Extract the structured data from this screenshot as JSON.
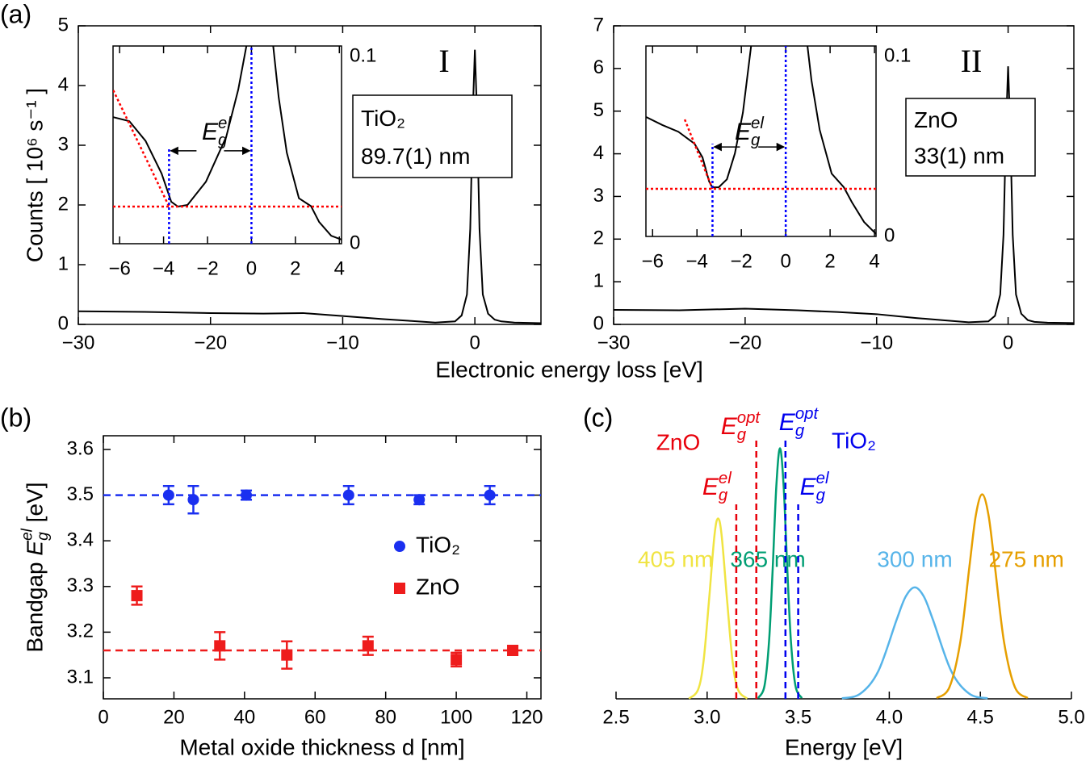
{
  "chart_data": [
    {
      "type": "line",
      "panel_label": "(a)",
      "x_label": "Electronic energy loss [eV]",
      "y_label": "Counts [ 10⁶ s⁻¹ ]",
      "annotation": "I",
      "sample": {
        "material": "TiO₂",
        "thickness": "89.7(1) nm"
      },
      "color": "#000000",
      "x": [
        -30,
        -25,
        -20,
        -16,
        -13,
        -10,
        -7,
        -5,
        -3,
        -1.5,
        -1,
        -0.6,
        -0.35,
        -0.15,
        0,
        0.15,
        0.35,
        0.6,
        1,
        1.5,
        2,
        3,
        5
      ],
      "values": [
        0.22,
        0.21,
        0.19,
        0.18,
        0.19,
        0.14,
        0.09,
        0.06,
        0.03,
        0.05,
        0.15,
        0.5,
        1.6,
        3.6,
        4.6,
        3.6,
        1.6,
        0.5,
        0.18,
        0.08,
        0.05,
        0.03,
        0.02
      ],
      "xlim": [
        -30,
        5
      ],
      "ylim": [
        0,
        5
      ],
      "xticks": [
        {
          "value": -30,
          "label": "−30"
        },
        {
          "value": -20,
          "label": "−20"
        },
        {
          "value": -10,
          "label": "−10"
        },
        0
      ],
      "yticks": [
        0,
        1,
        2,
        3,
        4,
        5
      ],
      "inset": {
        "x": [
          -6.29,
          -5.56,
          -4.82,
          -4.09,
          -3.65,
          -3.35,
          -2.91,
          -2.07,
          -1.15,
          -0.6,
          -0.23,
          -0.05,
          0.8,
          0.99,
          1.24,
          1.61,
          2.16,
          2.71,
          3.08,
          3.63,
          4.11
        ],
        "values": [
          0.064,
          0.062,
          0.052,
          0.0355,
          0.0212,
          0.0188,
          0.0196,
          0.0314,
          0.054,
          0.078,
          0.1,
          0.15,
          0.15,
          0.1,
          0.074,
          0.046,
          0.023,
          0.019,
          0.011,
          0.004,
          0.002
        ],
        "xlim": [
          -6.3,
          4.1
        ],
        "ylim": [
          0,
          0.1
        ],
        "xticks": [
          {
            "value": -6,
            "label": "−6"
          },
          {
            "value": -4,
            "label": "−4"
          },
          {
            "value": -2,
            "label": "−2"
          },
          0,
          2,
          4
        ],
        "yticks": [
          0,
          0.1
        ],
        "baseline": 0.0188,
        "baseline_color": "#ff0000",
        "tangent": {
          "x": [
            -6.29,
            -3.75
          ],
          "values": [
            0.0776,
            0.0188
          ]
        },
        "gap_edges": [
          -3.75,
          0
        ],
        "gap_color": "#0000ff",
        "gap_label": {
          "base": "E",
          "sub": "g",
          "sup": "el"
        }
      }
    },
    {
      "type": "line",
      "annotation": "II",
      "sample": {
        "material": "ZnO",
        "thickness": "33(1) nm"
      },
      "color": "#000000",
      "x": [
        -30,
        -25,
        -20,
        -16,
        -13,
        -10,
        -7,
        -5,
        -3,
        -1.5,
        -1,
        -0.6,
        -0.35,
        -0.15,
        0,
        0.15,
        0.35,
        0.6,
        1,
        1.5,
        2,
        3,
        5
      ],
      "values": [
        0.34,
        0.33,
        0.37,
        0.33,
        0.29,
        0.24,
        0.15,
        0.1,
        0.05,
        0.07,
        0.2,
        0.7,
        2.1,
        4.7,
        6.05,
        4.7,
        2.1,
        0.7,
        0.25,
        0.1,
        0.06,
        0.04,
        0.03
      ],
      "xlim": [
        -30,
        5
      ],
      "ylim": [
        0,
        7
      ],
      "xticks": [
        {
          "value": -30,
          "label": "−30"
        },
        {
          "value": -20,
          "label": "−20"
        },
        {
          "value": -10,
          "label": "−10"
        },
        0
      ],
      "yticks": [
        0,
        1,
        2,
        3,
        4,
        5,
        6,
        7
      ],
      "inset": {
        "x": [
          -6.29,
          -5.56,
          -4.84,
          -4.11,
          -3.75,
          -3.45,
          -3.31,
          -3.02,
          -2.65,
          -2.29,
          -1.93,
          -1.56,
          -1.3,
          0.8,
          0.98,
          1.16,
          1.53,
          2.07,
          2.62,
          2.98,
          3.53,
          4.07
        ],
        "values": [
          0.0627,
          0.0585,
          0.055,
          0.0487,
          0.0415,
          0.0288,
          0.0258,
          0.0258,
          0.03,
          0.0436,
          0.065,
          0.1,
          0.15,
          0.15,
          0.1,
          0.082,
          0.056,
          0.033,
          0.0258,
          0.018,
          0.0076,
          0.0013
        ],
        "xlim": [
          -6.3,
          4.07
        ],
        "ylim": [
          0,
          0.1
        ],
        "xticks": [
          {
            "value": -6,
            "label": "−6"
          },
          {
            "value": -4,
            "label": "−4"
          },
          {
            "value": -2,
            "label": "−2"
          },
          0,
          2,
          4
        ],
        "yticks": [
          0,
          0.1
        ],
        "baseline": 0.025,
        "baseline_color": "#ff0000",
        "tangent": {
          "x": [
            -4.55,
            -3.3
          ],
          "values": [
            0.0614,
            0.025
          ]
        },
        "gap_edges": [
          -3.3,
          0
        ],
        "gap_color": "#0000ff",
        "gap_label": {
          "base": "E",
          "sub": "g",
          "sup": "el"
        }
      }
    },
    {
      "type": "scatter",
      "panel_label": "(b)",
      "x_label": "Metal oxide thickness d [nm]",
      "y_label": {
        "prefix": "Bandgap ",
        "base": "E",
        "sub": "g",
        "sup": "el",
        "suffix": " [eV]"
      },
      "xlim": [
        0,
        124
      ],
      "ylim": [
        3.054,
        3.63
      ],
      "xticks": [
        0,
        20,
        40,
        60,
        80,
        100,
        120
      ],
      "yticks": [
        3.1,
        3.2,
        3.3,
        3.4,
        3.5,
        3.6
      ],
      "legend": "right",
      "series": [
        {
          "name": "TiO₂",
          "color": "#1a2ff0",
          "marker": "circle",
          "fit": 3.5,
          "x": [
            18.5,
            25.5,
            40.5,
            69.5,
            89.5,
            109.5
          ],
          "values": [
            3.5,
            3.49,
            3.5,
            3.5,
            3.49,
            3.5
          ],
          "errors": [
            0.02,
            0.03,
            0.01,
            0.02,
            0.01,
            0.02
          ]
        },
        {
          "name": "ZnO",
          "color": "#ee1c1c",
          "marker": "square",
          "fit": 3.16,
          "x": [
            9.5,
            33,
            52,
            75,
            100,
            116
          ],
          "values": [
            3.28,
            3.17,
            3.15,
            3.17,
            3.14,
            3.16
          ],
          "errors": [
            0.02,
            0.03,
            0.03,
            0.02,
            0.015,
            0.01
          ]
        }
      ]
    },
    {
      "type": "line",
      "panel_label": "(c)",
      "x_label": "Energy [eV]",
      "xlim": [
        2.5,
        5.0
      ],
      "ylim": [
        0,
        1.05
      ],
      "xticks": [
        2.5,
        {
          "value": 3,
          "label": "3.0"
        },
        3.5,
        {
          "value": 4,
          "label": "4.0"
        },
        4.5,
        {
          "value": 5,
          "label": "5.0"
        }
      ],
      "series": [
        {
          "name": "405 nm",
          "color": "#f0e442",
          "x": [
            2.9,
            2.95,
            2.98,
            3.01,
            3.04,
            3.06,
            3.08,
            3.11,
            3.14,
            3.17,
            3.22
          ],
          "values": [
            0.001,
            0.036,
            0.148,
            0.39,
            0.65,
            0.72,
            0.65,
            0.39,
            0.148,
            0.036,
            0.001
          ]
        },
        {
          "name": "365 nm",
          "color": "#009e73",
          "x": [
            3.28,
            3.315,
            3.34,
            3.36,
            3.38,
            3.4,
            3.42,
            3.44,
            3.46,
            3.485,
            3.52
          ],
          "values": [
            0.003,
            0.052,
            0.23,
            0.52,
            0.85,
            1,
            0.85,
            0.52,
            0.23,
            0.052,
            0.003
          ]
        },
        {
          "name": "300 nm",
          "color": "#56b4e9",
          "x": [
            3.74,
            3.84,
            3.94,
            4.04,
            4.09,
            4.14,
            4.19,
            4.24,
            4.34,
            4.44,
            4.54
          ],
          "values": [
            0.002,
            0.02,
            0.111,
            0.315,
            0.408,
            0.445,
            0.408,
            0.315,
            0.111,
            0.02,
            0.002
          ]
        },
        {
          "name": "275 nm",
          "color": "#e69f00",
          "x": [
            4.26,
            4.33,
            4.39,
            4.44,
            4.475,
            4.51,
            4.545,
            4.58,
            4.63,
            4.69,
            4.76
          ],
          "values": [
            0.003,
            0.046,
            0.227,
            0.528,
            0.732,
            0.816,
            0.732,
            0.528,
            0.227,
            0.046,
            0.003
          ]
        }
      ],
      "markers": [
        {
          "x": 3.16,
          "color": "#e8000b",
          "label": {
            "base": "E",
            "sub": "g",
            "sup": "el"
          }
        },
        {
          "x": 3.27,
          "color": "#e8000b",
          "label": {
            "base": "E",
            "sub": "g",
            "sup": "opt"
          }
        },
        {
          "x": 3.43,
          "color": "#0000ee",
          "label": {
            "base": "E",
            "sub": "g",
            "sup": "opt"
          }
        },
        {
          "x": 3.5,
          "color": "#0000ee",
          "label": {
            "base": "E",
            "sub": "g",
            "sup": "el"
          }
        }
      ],
      "group_labels": [
        {
          "text": "ZnO",
          "color": "#e8000b"
        },
        {
          "text": "TiO₂",
          "color": "#0000ee"
        }
      ]
    }
  ]
}
